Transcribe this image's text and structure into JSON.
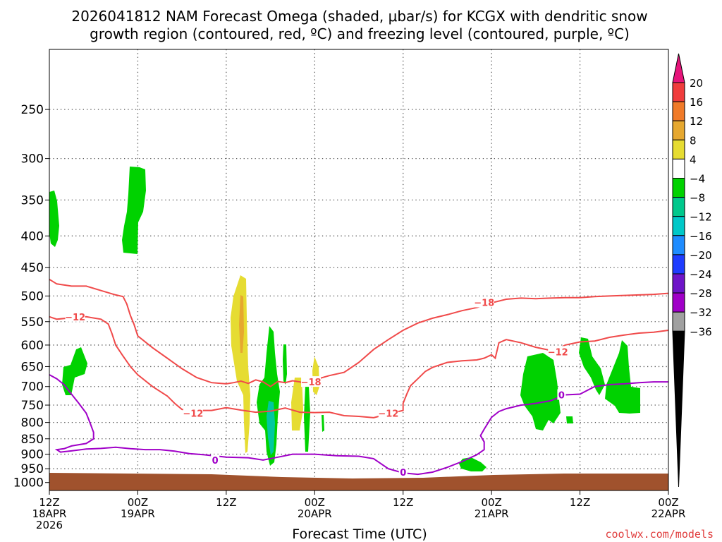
{
  "chart_data": {
    "type": "area",
    "title_lines": [
      "2026041812 NAM Forecast Omega (shaded, μbar/s) for KCGX with dendritic snow",
      "growth region (contoured, red, ºC) and freezing level (contoured, purple, ºC)"
    ],
    "xlabel": "Forecast Time (UTC)",
    "ylabel": "",
    "x_ticks": [
      {
        "h": 0,
        "lines": [
          "12Z",
          "18APR",
          "2026"
        ]
      },
      {
        "h": 12,
        "lines": [
          "00Z",
          "19APR"
        ]
      },
      {
        "h": 24,
        "lines": [
          "12Z"
        ]
      },
      {
        "h": 36,
        "lines": [
          "00Z",
          "20APR"
        ]
      },
      {
        "h": 48,
        "lines": [
          "12Z"
        ]
      },
      {
        "h": 60,
        "lines": [
          "00Z",
          "21APR"
        ]
      },
      {
        "h": 72,
        "lines": [
          "12Z"
        ]
      },
      {
        "h": 84,
        "lines": [
          "00Z",
          "22APR"
        ]
      }
    ],
    "xlim": [
      0,
      84
    ],
    "y_ticks": [
      250,
      300,
      350,
      400,
      450,
      500,
      550,
      600,
      650,
      700,
      750,
      800,
      850,
      900,
      950,
      1000
    ],
    "ylim_hpa": [
      200,
      1030
    ],
    "y_scale": "log-pressure",
    "grid": true,
    "colorbar": {
      "labels": [
        "20",
        "16",
        "12",
        "8",
        "4",
        "−4",
        "−8",
        "−12",
        "−16",
        "−20",
        "−24",
        "−28",
        "−32",
        "−36"
      ],
      "colors": [
        "#f03c3c",
        "#f07a28",
        "#e6a830",
        "#e6dc32",
        "#ffffff",
        "#00d200",
        "#00c88c",
        "#00c8c8",
        "#1e8cff",
        "#1e3cff",
        "#6e14c8",
        "#a000c8",
        "#a0a0a0"
      ],
      "top_color": "#e6147a",
      "bottom_color": "#000000"
    },
    "shading": {
      "green": "#00d200",
      "teal": "#00c8a0",
      "yellow": "#e6dc32",
      "orange": "#e6a830",
      "ground": "#a0522d"
    },
    "contour_colors": {
      "dgz": "#f04a4a",
      "freezing": "#a000c8"
    },
    "contour_labels": [
      {
        "text": "−12",
        "h": 3.5,
        "p": 540,
        "color": "dgz"
      },
      {
        "text": "−12",
        "h": 19.5,
        "p": 773,
        "color": "dgz"
      },
      {
        "text": "−18",
        "h": 35.5,
        "p": 688,
        "color": "dgz"
      },
      {
        "text": "−12",
        "h": 46.0,
        "p": 773,
        "color": "dgz"
      },
      {
        "text": "−18",
        "h": 59.0,
        "p": 512,
        "color": "dgz"
      },
      {
        "text": "−12",
        "h": 69.0,
        "p": 615,
        "color": "dgz"
      },
      {
        "text": "0",
        "h": 22.5,
        "p": 920,
        "color": "freezing"
      },
      {
        "text": "0",
        "h": 48.0,
        "p": 962,
        "color": "freezing"
      },
      {
        "text": "0",
        "h": 69.5,
        "p": 722,
        "color": "freezing"
      }
    ],
    "dgz_minus18": [
      [
        0,
        470
      ],
      [
        1,
        478
      ],
      [
        3,
        482
      ],
      [
        5,
        482
      ],
      [
        7,
        490
      ],
      [
        9,
        498
      ],
      [
        10,
        501
      ],
      [
        10.5,
        515
      ],
      [
        11,
        538
      ],
      [
        11.5,
        556
      ],
      [
        12,
        580
      ],
      [
        14,
        606
      ],
      [
        16,
        630
      ],
      [
        18,
        655
      ],
      [
        20,
        677
      ],
      [
        22,
        690
      ],
      [
        24,
        693
      ],
      [
        25,
        690
      ],
      [
        26,
        686
      ],
      [
        27,
        692
      ],
      [
        28,
        683
      ],
      [
        29,
        688
      ],
      [
        30,
        700
      ],
      [
        31,
        687
      ],
      [
        32,
        690
      ],
      [
        33,
        685
      ],
      [
        34,
        688
      ],
      [
        35,
        696
      ],
      [
        35.5,
        690
      ],
      [
        36.5,
        680
      ],
      [
        38,
        672
      ],
      [
        40,
        664
      ],
      [
        42,
        640
      ],
      [
        44,
        610
      ],
      [
        46,
        588
      ],
      [
        48,
        568
      ],
      [
        50,
        553
      ],
      [
        52,
        543
      ],
      [
        54,
        536
      ],
      [
        56,
        528
      ],
      [
        58,
        522
      ],
      [
        60,
        513
      ],
      [
        62,
        506
      ],
      [
        64,
        504
      ],
      [
        66,
        505
      ],
      [
        68,
        504
      ],
      [
        70,
        503
      ],
      [
        72,
        503
      ],
      [
        74,
        501
      ],
      [
        76,
        500
      ],
      [
        78,
        499
      ],
      [
        80,
        498
      ],
      [
        82,
        497
      ],
      [
        84,
        495
      ]
    ],
    "dgz_minus12": [
      [
        0,
        540
      ],
      [
        1,
        545
      ],
      [
        3,
        542
      ],
      [
        5,
        540
      ],
      [
        7,
        545
      ],
      [
        8,
        555
      ],
      [
        8.5,
        575
      ],
      [
        9,
        600
      ],
      [
        10,
        625
      ],
      [
        11,
        650
      ],
      [
        12,
        670
      ],
      [
        14,
        700
      ],
      [
        16,
        725
      ],
      [
        17,
        745
      ],
      [
        18,
        762
      ],
      [
        20,
        765
      ],
      [
        22,
        765
      ],
      [
        24,
        757
      ],
      [
        26,
        764
      ],
      [
        28,
        770
      ],
      [
        30,
        767
      ],
      [
        32,
        758
      ],
      [
        34,
        770
      ],
      [
        36,
        771
      ],
      [
        38,
        770
      ],
      [
        40,
        780
      ],
      [
        42,
        782
      ],
      [
        44,
        786
      ],
      [
        46,
        775
      ],
      [
        48,
        765
      ],
      [
        48,
        745
      ],
      [
        48.5,
        720
      ],
      [
        49,
        698
      ],
      [
        50,
        680
      ],
      [
        51,
        662
      ],
      [
        52,
        652
      ],
      [
        54,
        640
      ],
      [
        56,
        636
      ],
      [
        58,
        634
      ],
      [
        59,
        630
      ],
      [
        60,
        622
      ],
      [
        60.5,
        630
      ],
      [
        61,
        595
      ],
      [
        62,
        588
      ],
      [
        64,
        595
      ],
      [
        66,
        605
      ],
      [
        68,
        612
      ],
      [
        69,
        609
      ],
      [
        70,
        600
      ],
      [
        72,
        593
      ],
      [
        74,
        591
      ],
      [
        76,
        583
      ],
      [
        78,
        578
      ],
      [
        80,
        574
      ],
      [
        82,
        572
      ],
      [
        84,
        568
      ]
    ],
    "freezing": [
      [
        0,
        670
      ],
      [
        1,
        680
      ],
      [
        2,
        695
      ],
      [
        3,
        720
      ],
      [
        4,
        745
      ],
      [
        5,
        773
      ],
      [
        5.5,
        800
      ],
      [
        6,
        830
      ],
      [
        6,
        850
      ],
      [
        5,
        865
      ],
      [
        3,
        873
      ],
      [
        2,
        882
      ],
      [
        1,
        885
      ],
      [
        1.5,
        893
      ],
      [
        3,
        889
      ],
      [
        5,
        883
      ],
      [
        7,
        881
      ],
      [
        9,
        877
      ],
      [
        11,
        882
      ],
      [
        13,
        885
      ],
      [
        15,
        885
      ],
      [
        17,
        890
      ],
      [
        19,
        898
      ],
      [
        21,
        902
      ],
      [
        24,
        910
      ],
      [
        27,
        912
      ],
      [
        29,
        920
      ],
      [
        31,
        910
      ],
      [
        33,
        900
      ],
      [
        36,
        900
      ],
      [
        39,
        905
      ],
      [
        42,
        907
      ],
      [
        44,
        915
      ],
      [
        46,
        950
      ],
      [
        48,
        965
      ],
      [
        50,
        970
      ],
      [
        52,
        962
      ],
      [
        54,
        945
      ],
      [
        56,
        925
      ],
      [
        58,
        902
      ],
      [
        59,
        885
      ],
      [
        59,
        860
      ],
      [
        58.5,
        840
      ],
      [
        59,
        820
      ],
      [
        60,
        785
      ],
      [
        61,
        768
      ],
      [
        62,
        760
      ],
      [
        63,
        755
      ],
      [
        64,
        750
      ],
      [
        65,
        748
      ],
      [
        66,
        745
      ],
      [
        68,
        738
      ],
      [
        70,
        722
      ],
      [
        72,
        720
      ],
      [
        73,
        710
      ],
      [
        74,
        700
      ],
      [
        76,
        695
      ],
      [
        78,
        693
      ],
      [
        80,
        690
      ],
      [
        82,
        688
      ],
      [
        84,
        688
      ]
    ]
  },
  "watermark": "coolwx.com/models"
}
